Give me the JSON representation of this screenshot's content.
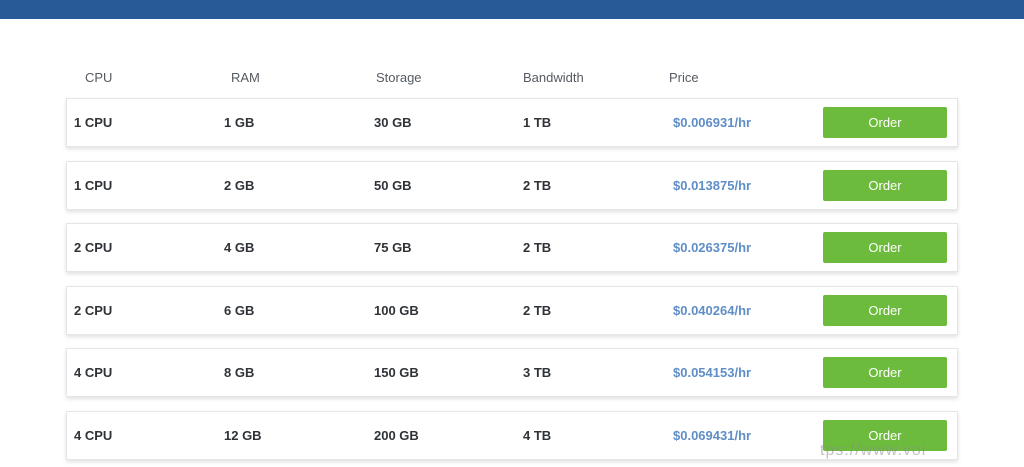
{
  "header": {
    "cpu": "CPU",
    "ram": "RAM",
    "storage": "Storage",
    "bandwidth": "Bandwidth",
    "price": "Price"
  },
  "plans": [
    {
      "cpu": "1 CPU",
      "ram": "1 GB",
      "storage": "30 GB",
      "bandwidth": "1 TB",
      "price": "$0.006931/hr",
      "order_label": "Order"
    },
    {
      "cpu": "1 CPU",
      "ram": "2 GB",
      "storage": "50 GB",
      "bandwidth": "2 TB",
      "price": "$0.013875/hr",
      "order_label": "Order"
    },
    {
      "cpu": "2 CPU",
      "ram": "4 GB",
      "storage": "75 GB",
      "bandwidth": "2 TB",
      "price": "$0.026375/hr",
      "order_label": "Order"
    },
    {
      "cpu": "2 CPU",
      "ram": "6 GB",
      "storage": "100 GB",
      "bandwidth": "2 TB",
      "price": "$0.040264/hr",
      "order_label": "Order"
    },
    {
      "cpu": "4 CPU",
      "ram": "8 GB",
      "storage": "150 GB",
      "bandwidth": "3 TB",
      "price": "$0.054153/hr",
      "order_label": "Order"
    },
    {
      "cpu": "4 CPU",
      "ram": "12 GB",
      "storage": "200 GB",
      "bandwidth": "4 TB",
      "price": "$0.069431/hr",
      "order_label": "Order"
    }
  ],
  "watermark": "tps://www.voi",
  "colors": {
    "topbar": "#285a98",
    "price": "#5f8ec7",
    "order_button": "#6cbb3c"
  }
}
